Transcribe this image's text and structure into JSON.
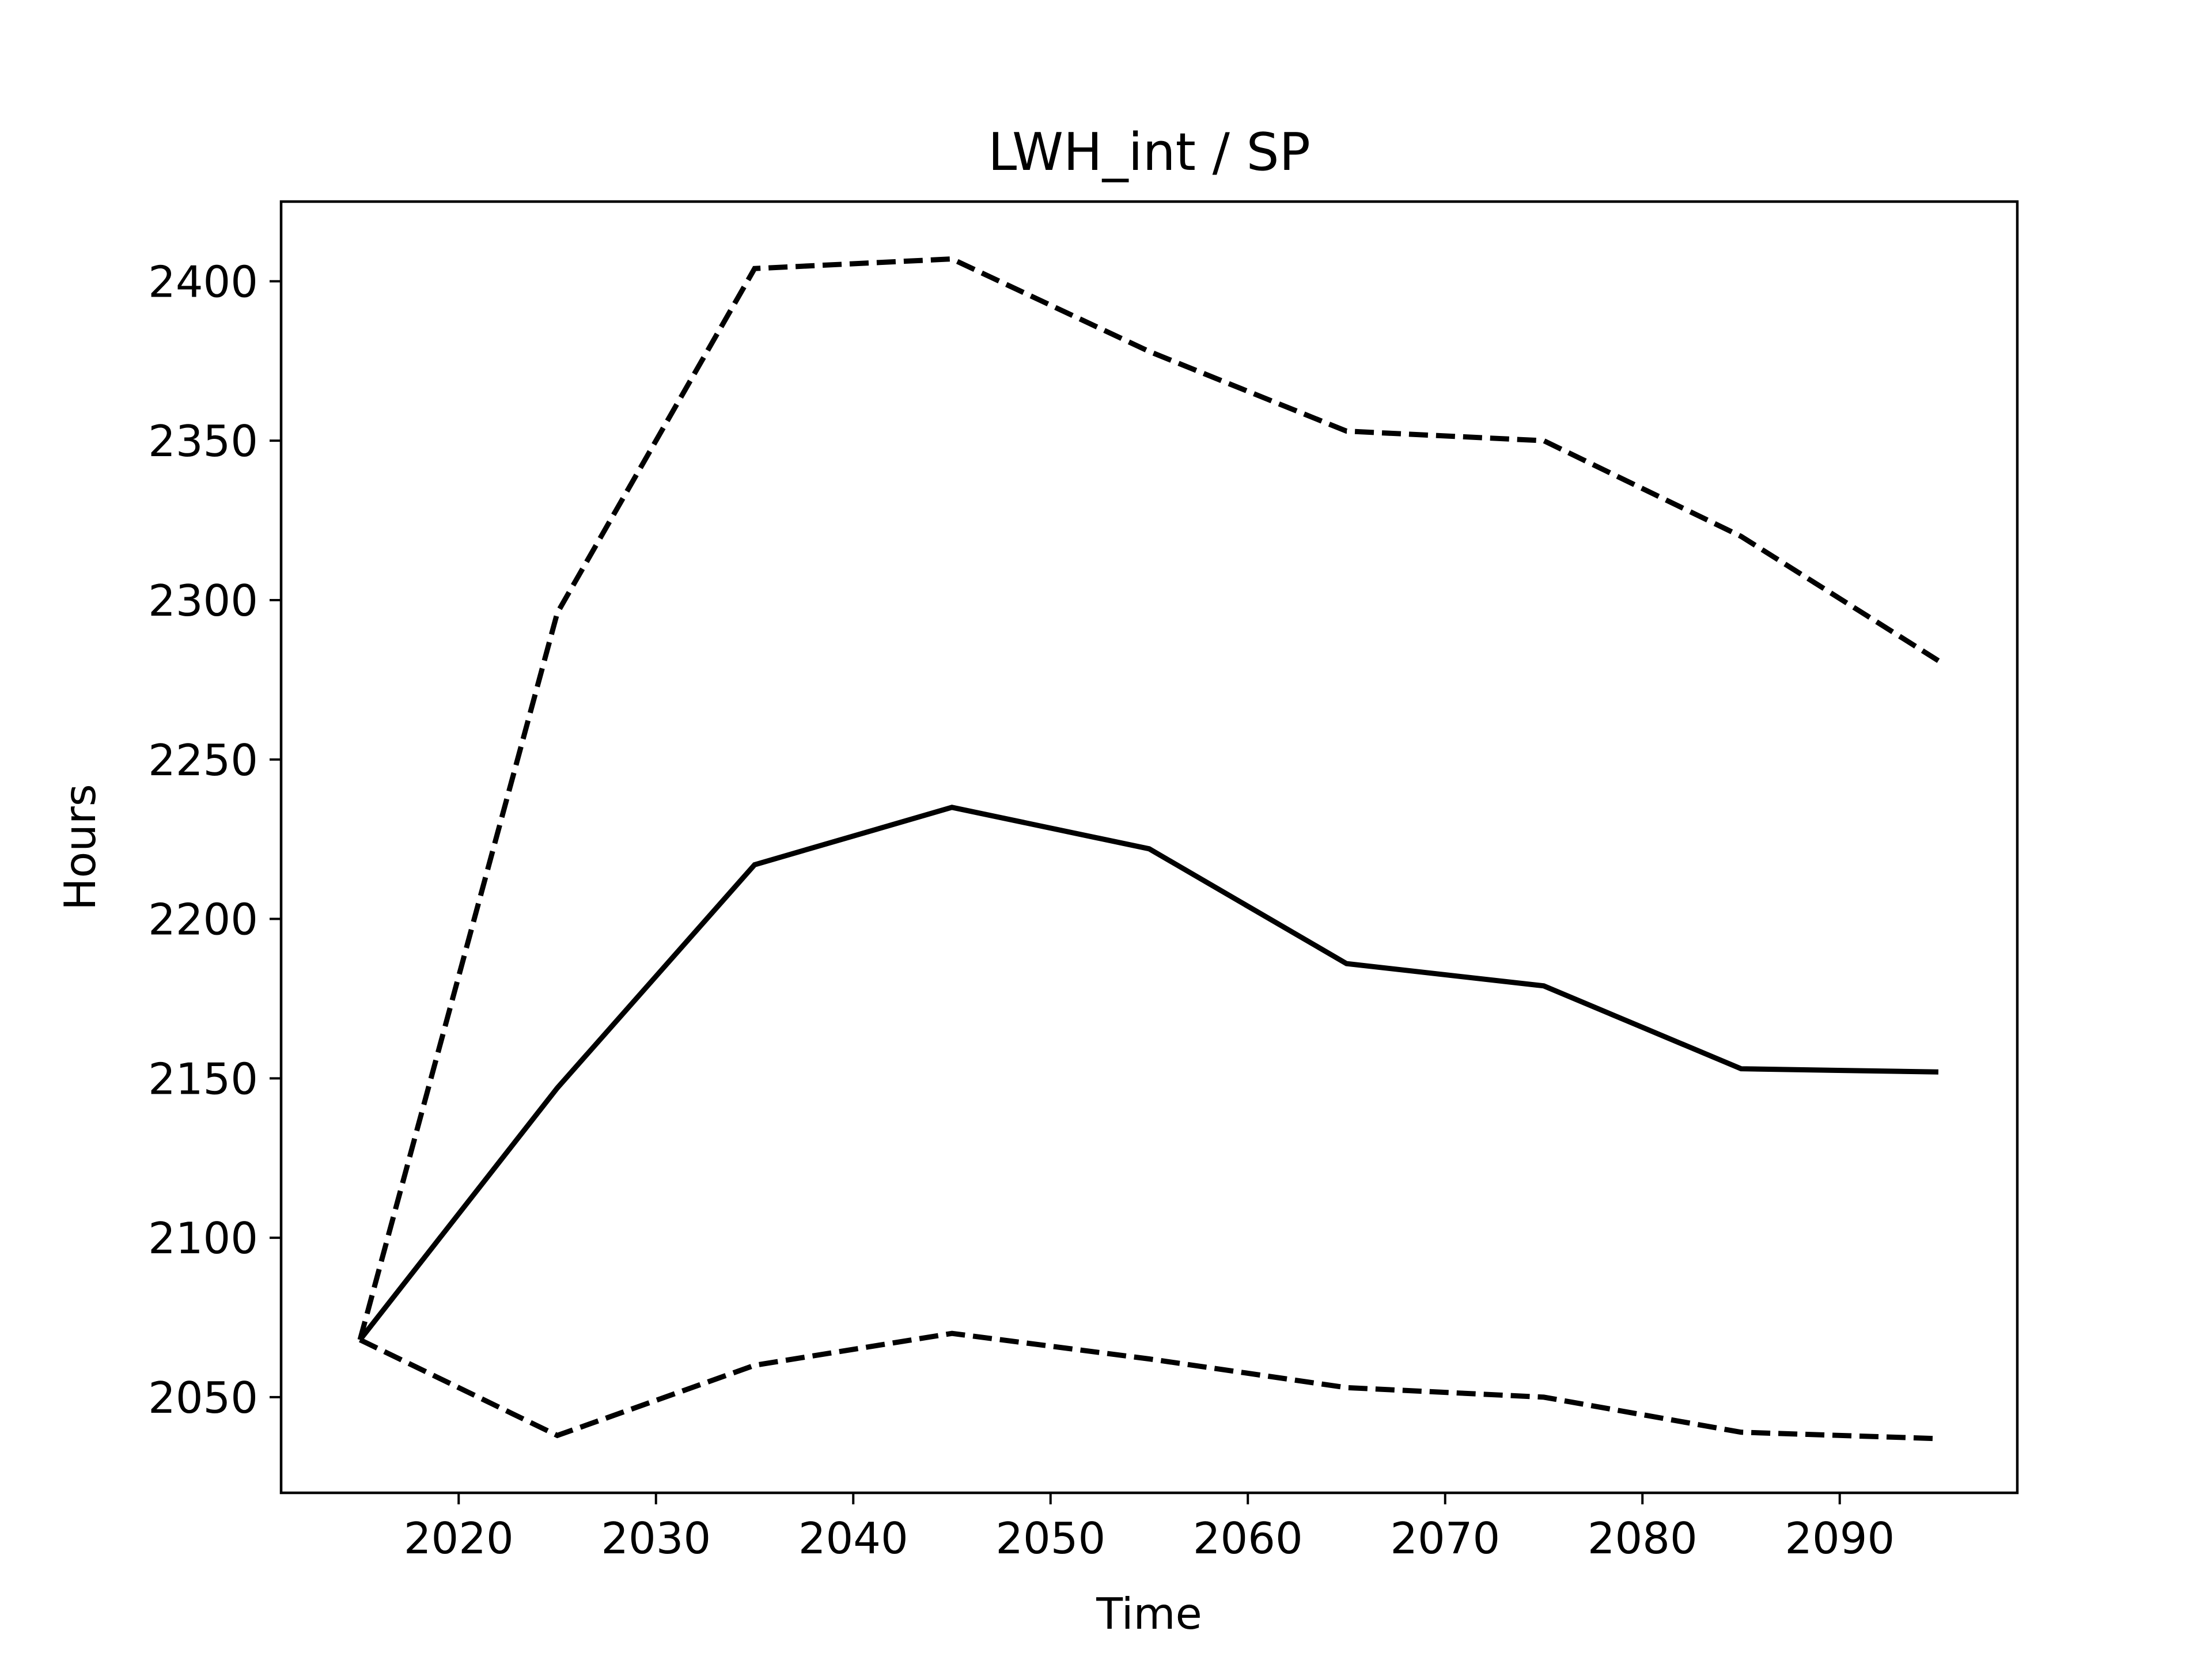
{
  "chart_data": {
    "type": "line",
    "title": "LWH_int / SP",
    "xlabel": "Time",
    "ylabel": "Hours",
    "x": [
      2015,
      2025,
      2035,
      2045,
      2055,
      2065,
      2075,
      2085,
      2095
    ],
    "xlim": [
      2011,
      2099
    ],
    "ylim": [
      2020,
      2425
    ],
    "xticks": [
      2020,
      2030,
      2040,
      2050,
      2060,
      2070,
      2080,
      2090
    ],
    "yticks": [
      2050,
      2100,
      2150,
      2200,
      2250,
      2300,
      2350,
      2400
    ],
    "grid": false,
    "legend": "none",
    "series": [
      {
        "style": "solid",
        "color": "#000000",
        "values": [
          2068,
          2147,
          2217,
          2235,
          2222,
          2186,
          2179,
          2153,
          2152
        ]
      },
      {
        "style": "dashed",
        "color": "#000000",
        "values": [
          2068,
          2296,
          2404,
          2407,
          2378,
          2353,
          2350,
          2320,
          2281
        ]
      },
      {
        "style": "dashed",
        "color": "#000000",
        "values": [
          2068,
          2038,
          2060,
          2070,
          2062,
          2053,
          2050,
          2039,
          2037
        ]
      }
    ]
  }
}
